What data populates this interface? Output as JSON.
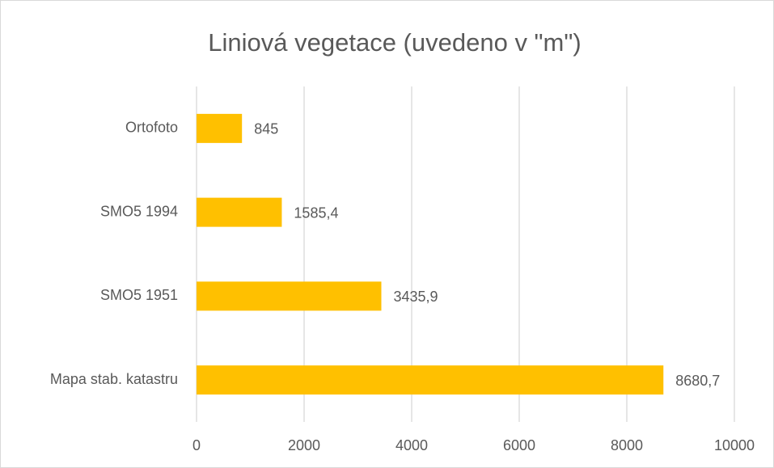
{
  "chart_data": {
    "type": "bar",
    "orientation": "horizontal",
    "title": "Liniová vegetace (uvedeno v \"m\")",
    "categories": [
      "Ortofoto",
      "SMO5 1994",
      "SMO5 1951",
      "Mapa stab. katastru"
    ],
    "values": [
      845,
      1585.4,
      3435.9,
      8680.7
    ],
    "value_labels": [
      "845",
      "1585,4",
      "3435,9",
      "8680,7"
    ],
    "color": "#ffc000",
    "xlim": [
      0,
      10000
    ],
    "xticks": [
      0,
      2000,
      4000,
      6000,
      8000,
      10000
    ],
    "grid": true
  }
}
